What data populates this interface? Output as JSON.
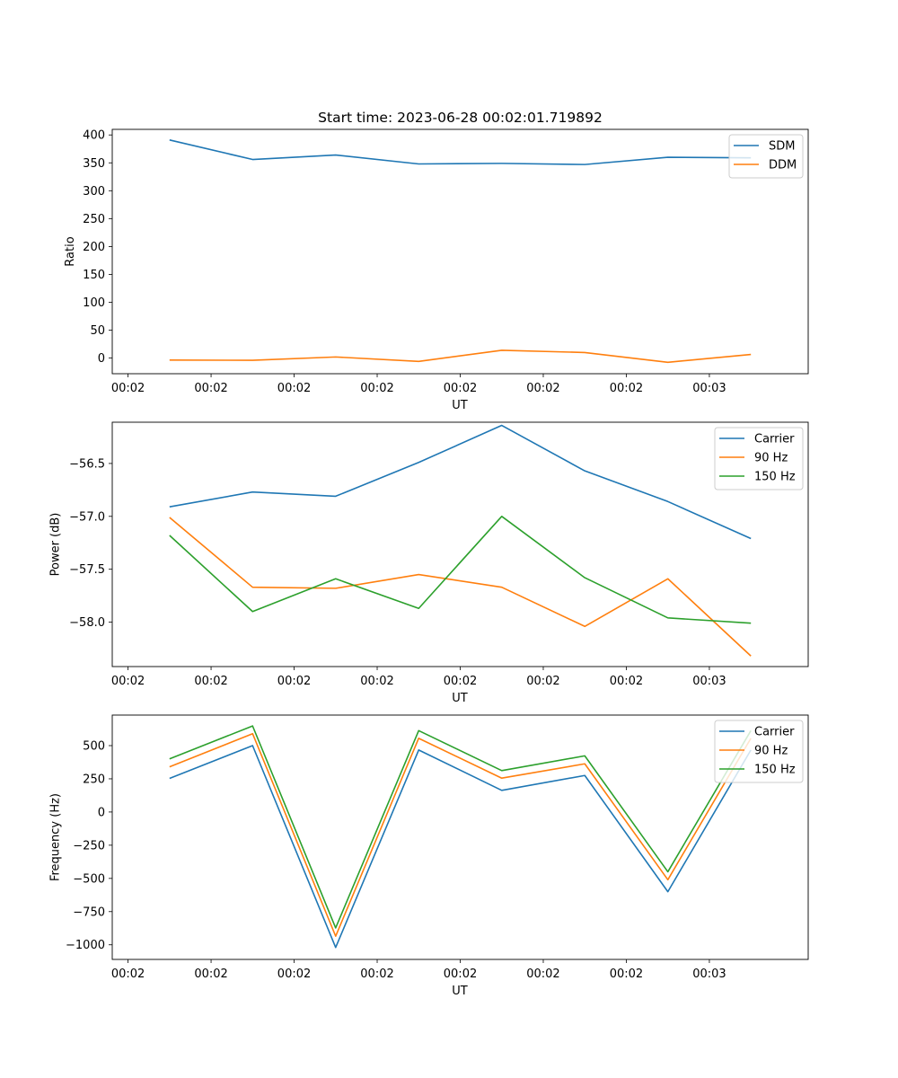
{
  "figure": {
    "title": "Start time: 2023-06-28 00:02:01.719892"
  },
  "chart_data": [
    {
      "type": "line",
      "title": "Start time: 2023-06-28 00:02:01.719892",
      "xlabel": "UT",
      "ylabel": "Ratio",
      "x_tick_labels": [
        "00:02",
        "00:02",
        "00:02",
        "00:02",
        "00:02",
        "00:02",
        "00:02",
        "00:03"
      ],
      "x_index_range": [
        -0.19,
        8.19
      ],
      "y_ticks": [
        0,
        50,
        100,
        150,
        200,
        250,
        300,
        350,
        400
      ],
      "y_tick_labels": [
        "0",
        "50",
        "100",
        "150",
        "200",
        "250",
        "300",
        "350",
        "400"
      ],
      "ylim": [
        -28,
        410
      ],
      "grid": false,
      "legend_position": "upper right",
      "series": [
        {
          "name": "SDM",
          "color": "#1f77b4",
          "x": [
            0.5,
            1.5,
            2.5,
            3.5,
            4.5,
            5.5,
            6.5,
            7.5
          ],
          "y": [
            391,
            356,
            364,
            348,
            349,
            347,
            360,
            359
          ]
        },
        {
          "name": "DDM",
          "color": "#ff7f0e",
          "x": [
            0.5,
            1.5,
            2.5,
            3.5,
            4.5,
            5.5,
            6.5,
            7.5
          ],
          "y": [
            -3.5,
            -4,
            2,
            -6,
            14,
            10,
            -7.5,
            6.5
          ]
        }
      ]
    },
    {
      "type": "line",
      "title": "",
      "xlabel": "UT",
      "ylabel": "Power (dB)",
      "x_tick_labels": [
        "00:02",
        "00:02",
        "00:02",
        "00:02",
        "00:02",
        "00:02",
        "00:02",
        "00:03"
      ],
      "x_index_range": [
        -0.19,
        8.19
      ],
      "y_ticks": [
        -58.0,
        -57.5,
        -57.0,
        -56.5
      ],
      "y_tick_labels": [
        "−58.0",
        "−57.5",
        "−57.0",
        "−56.5"
      ],
      "ylim": [
        -58.42,
        -56.11
      ],
      "grid": false,
      "legend_position": "upper right",
      "series": [
        {
          "name": "Carrier",
          "color": "#1f77b4",
          "x": [
            0.5,
            1.5,
            2.5,
            3.5,
            4.5,
            5.5,
            6.5,
            7.5
          ],
          "y": [
            -56.91,
            -56.77,
            -56.81,
            -56.49,
            -56.14,
            -56.57,
            -56.86,
            -57.21
          ]
        },
        {
          "name": "90 Hz",
          "color": "#ff7f0e",
          "x": [
            0.5,
            1.5,
            2.5,
            3.5,
            4.5,
            5.5,
            6.5,
            7.5
          ],
          "y": [
            -57.01,
            -57.67,
            -57.68,
            -57.55,
            -57.67,
            -58.04,
            -57.59,
            -58.32
          ]
        },
        {
          "name": "150 Hz",
          "color": "#2ca02c",
          "x": [
            0.5,
            1.5,
            2.5,
            3.5,
            4.5,
            5.5,
            6.5,
            7.5
          ],
          "y": [
            -57.18,
            -57.9,
            -57.59,
            -57.87,
            -57.0,
            -57.58,
            -57.96,
            -58.01
          ]
        }
      ]
    },
    {
      "type": "line",
      "title": "",
      "xlabel": "UT",
      "ylabel": "Frequency (Hz)",
      "x_tick_labels": [
        "00:02",
        "00:02",
        "00:02",
        "00:02",
        "00:02",
        "00:02",
        "00:02",
        "00:03"
      ],
      "x_index_range": [
        -0.19,
        8.19
      ],
      "y_ticks": [
        -1000,
        -750,
        -500,
        -250,
        0,
        250,
        500
      ],
      "y_tick_labels": [
        "−1000",
        "−750",
        "−500",
        "−250",
        "0",
        "250",
        "500"
      ],
      "ylim": [
        -1110,
        730
      ],
      "grid": false,
      "legend_position": "upper right",
      "series": [
        {
          "name": "Carrier",
          "color": "#1f77b4",
          "x": [
            0.5,
            1.5,
            2.5,
            3.5,
            4.5,
            5.5,
            6.5,
            7.5
          ],
          "y": [
            253,
            500,
            -1020,
            467,
            163,
            275,
            -600,
            467
          ]
        },
        {
          "name": "90 Hz",
          "color": "#ff7f0e",
          "x": [
            0.5,
            1.5,
            2.5,
            3.5,
            4.5,
            5.5,
            6.5,
            7.5
          ],
          "y": [
            340,
            590,
            -935,
            555,
            255,
            363,
            -510,
            555
          ]
        },
        {
          "name": "150 Hz",
          "color": "#2ca02c",
          "x": [
            0.5,
            1.5,
            2.5,
            3.5,
            4.5,
            5.5,
            6.5,
            7.5
          ],
          "y": [
            400,
            648,
            -873,
            613,
            312,
            423,
            -450,
            613
          ]
        }
      ]
    }
  ]
}
